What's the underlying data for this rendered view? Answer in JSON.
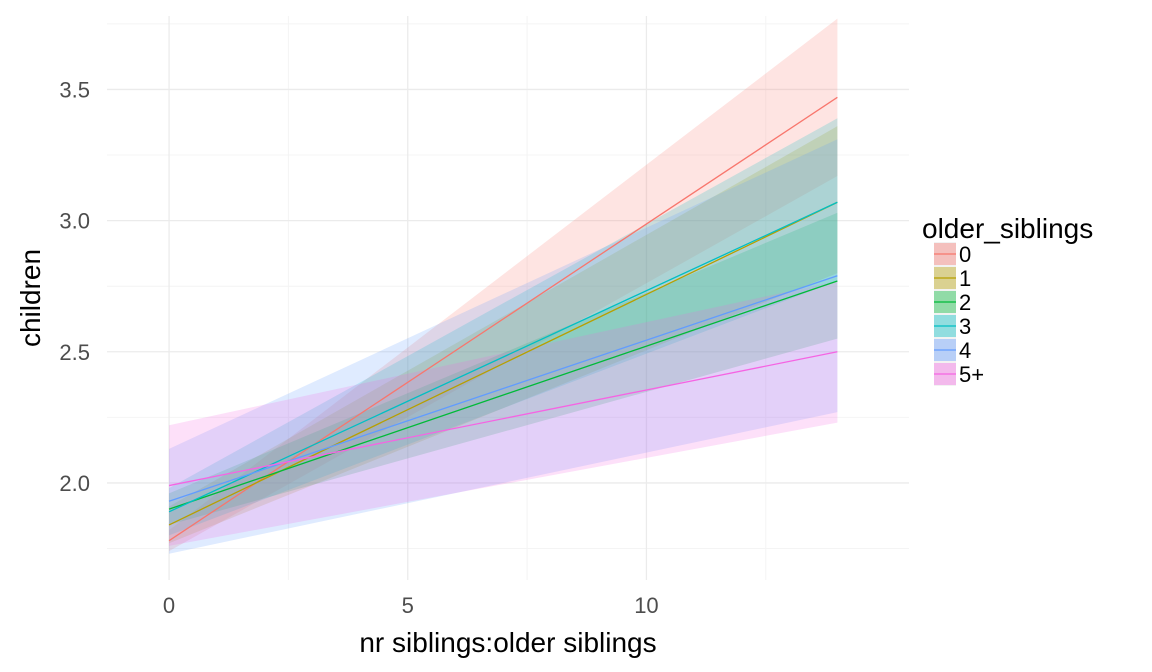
{
  "chart_data": {
    "type": "line",
    "xlabel": "nr siblings:older siblings",
    "ylabel": "children",
    "xlim": [
      -1.3,
      15.5
    ],
    "ylim": [
      1.63,
      3.78
    ],
    "x_ticks": [
      0,
      5,
      10
    ],
    "x_tick_labels": [
      "0",
      "5",
      "10"
    ],
    "y_ticks": [
      2.0,
      2.5,
      3.0,
      3.5
    ],
    "y_tick_labels": [
      "2.0",
      "2.5",
      "3.0",
      "3.5"
    ],
    "grid": true,
    "legend": {
      "title": "older_siblings",
      "position": "right"
    },
    "ribbon_opacity": 0.2,
    "series": [
      {
        "name": "0",
        "color": "#F8766D",
        "x": [
          0,
          14
        ],
        "y": [
          1.78,
          3.47
        ],
        "lower": [
          1.74,
          3.17
        ],
        "upper": [
          1.82,
          3.77
        ]
      },
      {
        "name": "1",
        "color": "#B79F00",
        "x": [
          0,
          14
        ],
        "y": [
          1.84,
          3.07
        ],
        "lower": [
          1.77,
          2.8
        ],
        "upper": [
          1.91,
          3.36
        ]
      },
      {
        "name": "2",
        "color": "#00BA38",
        "x": [
          0,
          14
        ],
        "y": [
          1.9,
          2.77
        ],
        "lower": [
          1.84,
          2.55
        ],
        "upper": [
          1.96,
          3.03
        ]
      },
      {
        "name": "3",
        "color": "#00BFC4",
        "x": [
          0,
          14
        ],
        "y": [
          1.89,
          3.07
        ],
        "lower": [
          1.8,
          2.77
        ],
        "upper": [
          1.98,
          3.39
        ]
      },
      {
        "name": "4",
        "color": "#619CFF",
        "x": [
          0,
          14
        ],
        "y": [
          1.93,
          2.79
        ],
        "lower": [
          1.73,
          2.27
        ],
        "upper": [
          2.13,
          3.31
        ]
      },
      {
        "name": "5+",
        "color": "#F564E3",
        "x": [
          0,
          14
        ],
        "y": [
          1.99,
          2.5
        ],
        "lower": [
          1.76,
          2.23
        ],
        "upper": [
          2.22,
          2.77
        ]
      }
    ]
  }
}
